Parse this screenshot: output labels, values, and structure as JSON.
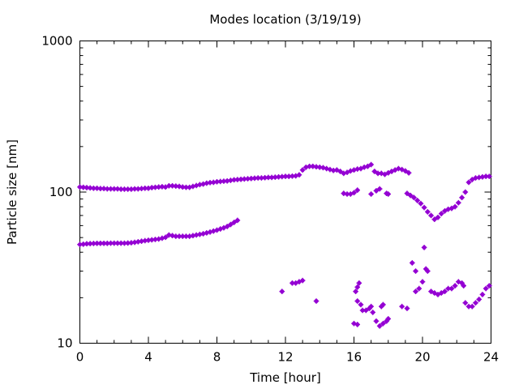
{
  "chart_data": {
    "type": "scatter",
    "title": "Modes location (3/19/19)",
    "xlabel": "Time [hour]",
    "ylabel": "Particle size [nm]",
    "xlim": [
      0,
      24
    ],
    "ylim": [
      10,
      1000
    ],
    "yscale": "log",
    "grid": false,
    "legend": "none",
    "marker_color": "#9400d3",
    "x_ticks": [
      {
        "value": 0,
        "label": "0"
      },
      {
        "value": 4,
        "label": "4"
      },
      {
        "value": 8,
        "label": "8"
      },
      {
        "value": 12,
        "label": "12"
      },
      {
        "value": 16,
        "label": "16"
      },
      {
        "value": 20,
        "label": "20"
      },
      {
        "value": 24,
        "label": "24"
      }
    ],
    "y_ticks": [
      {
        "value": 10,
        "label": "10"
      },
      {
        "value": 100,
        "label": "100"
      },
      {
        "value": 1000,
        "label": "1000"
      }
    ],
    "series": [
      {
        "points": [
          [
            0.0,
            108
          ],
          [
            0.2,
            107.5
          ],
          [
            0.4,
            107
          ],
          [
            0.6,
            106.5
          ],
          [
            0.8,
            106
          ],
          [
            1.0,
            106
          ],
          [
            1.2,
            105.5
          ],
          [
            1.4,
            105.5
          ],
          [
            1.6,
            105
          ],
          [
            1.8,
            105
          ],
          [
            2.0,
            105
          ],
          [
            2.2,
            105
          ],
          [
            2.4,
            104.5
          ],
          [
            2.6,
            104.5
          ],
          [
            2.8,
            104.5
          ],
          [
            3.0,
            104.5
          ],
          [
            3.2,
            105
          ],
          [
            3.4,
            105
          ],
          [
            3.6,
            105.5
          ],
          [
            3.8,
            106
          ],
          [
            4.0,
            106
          ],
          [
            4.2,
            107
          ],
          [
            4.4,
            107.5
          ],
          [
            4.6,
            108
          ],
          [
            4.8,
            108.5
          ],
          [
            5.0,
            108
          ],
          [
            5.2,
            110
          ],
          [
            5.4,
            110
          ],
          [
            5.6,
            109.5
          ],
          [
            5.8,
            109
          ],
          [
            6.0,
            108
          ],
          [
            6.2,
            107.5
          ],
          [
            6.4,
            107.5
          ],
          [
            6.6,
            109
          ],
          [
            6.8,
            110.5
          ],
          [
            7.0,
            112
          ],
          [
            7.2,
            113
          ],
          [
            7.4,
            114.5
          ],
          [
            7.6,
            115.5
          ],
          [
            7.8,
            116
          ],
          [
            8.0,
            117
          ],
          [
            8.2,
            117.5
          ],
          [
            8.4,
            118
          ],
          [
            8.6,
            118.5
          ],
          [
            8.8,
            119.5
          ],
          [
            9.0,
            120.5
          ],
          [
            9.2,
            121
          ],
          [
            9.4,
            121.5
          ],
          [
            9.6,
            122
          ],
          [
            9.8,
            122.5
          ],
          [
            10.0,
            123
          ],
          [
            10.2,
            123.5
          ],
          [
            10.4,
            124
          ],
          [
            10.6,
            124
          ],
          [
            10.8,
            124.5
          ],
          [
            11.0,
            125
          ],
          [
            11.2,
            125
          ],
          [
            11.4,
            125.5
          ],
          [
            11.6,
            126
          ],
          [
            11.8,
            126.5
          ],
          [
            12.0,
            127
          ],
          [
            12.2,
            127
          ],
          [
            12.4,
            127.5
          ],
          [
            12.6,
            128
          ],
          [
            12.8,
            130
          ],
          [
            13.0,
            140
          ],
          [
            13.2,
            146
          ],
          [
            13.4,
            148
          ],
          [
            13.6,
            148
          ],
          [
            13.8,
            147
          ],
          [
            14.0,
            146
          ],
          [
            14.2,
            145
          ],
          [
            14.4,
            143
          ],
          [
            14.6,
            141
          ],
          [
            14.8,
            139
          ],
          [
            15.0,
            140
          ],
          [
            15.2,
            137
          ],
          [
            15.4,
            133
          ],
          [
            15.6,
            135
          ],
          [
            15.8,
            138
          ],
          [
            16.0,
            140
          ],
          [
            16.2,
            142
          ],
          [
            16.4,
            143
          ],
          [
            16.6,
            146
          ],
          [
            16.8,
            148
          ],
          [
            17.0,
            152
          ],
          [
            17.2,
            137
          ],
          [
            17.4,
            133
          ],
          [
            17.6,
            133
          ],
          [
            17.8,
            131
          ],
          [
            18.0,
            134
          ],
          [
            18.2,
            137
          ],
          [
            18.4,
            140
          ],
          [
            18.6,
            143
          ],
          [
            18.8,
            141
          ],
          [
            19.0,
            138
          ],
          [
            19.2,
            134
          ],
          [
            15.4,
            98
          ],
          [
            15.6,
            97
          ],
          [
            15.8,
            97
          ],
          [
            16.0,
            99
          ],
          [
            16.2,
            103
          ],
          [
            17.0,
            97
          ],
          [
            17.3,
            102
          ],
          [
            17.5,
            105
          ],
          [
            17.9,
            98
          ],
          [
            18.0,
            97
          ],
          [
            19.1,
            98
          ],
          [
            19.3,
            95
          ],
          [
            19.5,
            92
          ],
          [
            19.7,
            88
          ],
          [
            19.9,
            84
          ],
          [
            20.1,
            79
          ],
          [
            20.3,
            74
          ],
          [
            20.5,
            70
          ],
          [
            20.7,
            66
          ],
          [
            20.9,
            68
          ],
          [
            21.1,
            72
          ],
          [
            21.3,
            75
          ],
          [
            21.5,
            77
          ],
          [
            21.7,
            78
          ],
          [
            21.9,
            80
          ],
          [
            22.1,
            85
          ],
          [
            22.3,
            92
          ],
          [
            22.5,
            100
          ],
          [
            22.7,
            116
          ],
          [
            22.9,
            121
          ],
          [
            23.1,
            124
          ],
          [
            23.3,
            125
          ],
          [
            23.5,
            126
          ],
          [
            23.7,
            127
          ],
          [
            23.9,
            127
          ],
          [
            0.0,
            45
          ],
          [
            0.2,
            45.2
          ],
          [
            0.4,
            45.5
          ],
          [
            0.6,
            45.6
          ],
          [
            0.8,
            45.7
          ],
          [
            1.0,
            45.8
          ],
          [
            1.2,
            45.8
          ],
          [
            1.4,
            45.8
          ],
          [
            1.6,
            45.8
          ],
          [
            1.8,
            45.9
          ],
          [
            2.0,
            45.9
          ],
          [
            2.2,
            45.9
          ],
          [
            2.4,
            45.9
          ],
          [
            2.6,
            45.9
          ],
          [
            2.8,
            46
          ],
          [
            3.0,
            46.2
          ],
          [
            3.2,
            46.5
          ],
          [
            3.4,
            46.9
          ],
          [
            3.6,
            47.3
          ],
          [
            3.8,
            47.7
          ],
          [
            4.0,
            48
          ],
          [
            4.2,
            48.3
          ],
          [
            4.4,
            48.6
          ],
          [
            4.6,
            48.9
          ],
          [
            4.8,
            49.5
          ],
          [
            5.0,
            50.2
          ],
          [
            5.2,
            52
          ],
          [
            5.4,
            51.5
          ],
          [
            5.6,
            51
          ],
          [
            5.8,
            51
          ],
          [
            6.0,
            51
          ],
          [
            6.2,
            51
          ],
          [
            6.4,
            51
          ],
          [
            6.6,
            51.5
          ],
          [
            6.8,
            52
          ],
          [
            7.0,
            52.5
          ],
          [
            7.2,
            53
          ],
          [
            7.4,
            53.7
          ],
          [
            7.6,
            54.4
          ],
          [
            7.8,
            55.2
          ],
          [
            8.0,
            56
          ],
          [
            8.2,
            57
          ],
          [
            8.4,
            58
          ],
          [
            8.6,
            59.2
          ],
          [
            8.8,
            61
          ],
          [
            9.0,
            63
          ],
          [
            9.2,
            65
          ],
          [
            11.8,
            22
          ],
          [
            12.4,
            25
          ],
          [
            12.6,
            25
          ],
          [
            12.8,
            25.5
          ],
          [
            13.0,
            26
          ],
          [
            13.8,
            19
          ],
          [
            16.0,
            13.5
          ],
          [
            16.2,
            13.3
          ],
          [
            16.1,
            22
          ],
          [
            16.2,
            23.5
          ],
          [
            16.3,
            25
          ],
          [
            16.2,
            19
          ],
          [
            16.4,
            18
          ],
          [
            16.5,
            16.5
          ],
          [
            16.7,
            16.5
          ],
          [
            16.9,
            17
          ],
          [
            17.0,
            17.5
          ],
          [
            17.1,
            16
          ],
          [
            17.3,
            14
          ],
          [
            17.5,
            13
          ],
          [
            17.6,
            17.5
          ],
          [
            17.7,
            18
          ],
          [
            17.7,
            13.5
          ],
          [
            17.9,
            14
          ],
          [
            18.0,
            14.5
          ],
          [
            18.8,
            17.5
          ],
          [
            19.1,
            17
          ],
          [
            19.4,
            34
          ],
          [
            19.6,
            30
          ],
          [
            19.6,
            22
          ],
          [
            19.8,
            23
          ],
          [
            20.0,
            25.5
          ],
          [
            20.1,
            43
          ],
          [
            20.2,
            31
          ],
          [
            20.3,
            30
          ],
          [
            20.5,
            22
          ],
          [
            20.7,
            21.5
          ],
          [
            20.9,
            21
          ],
          [
            21.1,
            21.5
          ],
          [
            21.3,
            22
          ],
          [
            21.5,
            23
          ],
          [
            21.7,
            23
          ],
          [
            21.9,
            24
          ],
          [
            22.1,
            25.5
          ],
          [
            22.3,
            25
          ],
          [
            22.4,
            24
          ],
          [
            22.5,
            18.5
          ],
          [
            22.7,
            17.5
          ],
          [
            22.9,
            17.5
          ],
          [
            23.1,
            18.5
          ],
          [
            23.3,
            19.5
          ],
          [
            23.5,
            21
          ],
          [
            23.7,
            23
          ],
          [
            23.9,
            24
          ]
        ]
      }
    ]
  }
}
